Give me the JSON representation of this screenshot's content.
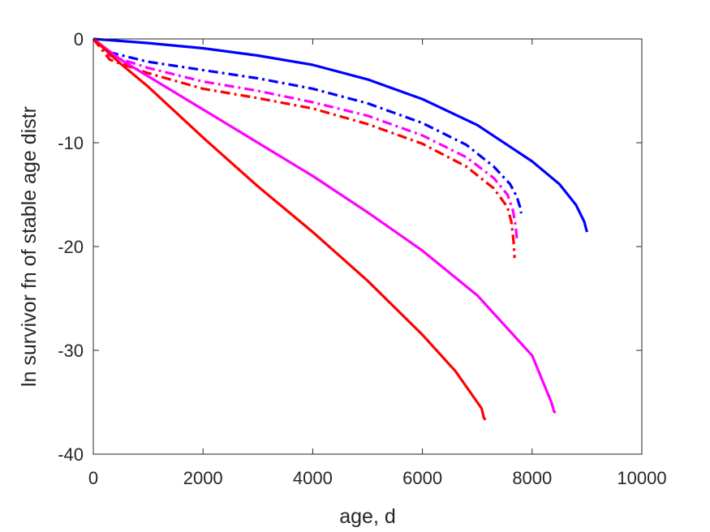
{
  "chart_data": {
    "type": "line",
    "title": "",
    "xlabel": "age, d",
    "ylabel": "ln survivor fn of stable age distr",
    "xlim": [
      0,
      10000
    ],
    "ylim": [
      -40,
      0
    ],
    "xticks": [
      0,
      2000,
      4000,
      6000,
      8000,
      10000
    ],
    "yticks": [
      0,
      -10,
      -20,
      -30,
      -40
    ],
    "grid": false,
    "legend": "none",
    "series": [
      {
        "color": "#0000ff",
        "style": "solid",
        "x": [
          0,
          1000,
          2000,
          3000,
          4000,
          5000,
          6000,
          7000,
          8000,
          8500,
          8800,
          8950,
          9000
        ],
        "y": [
          0,
          -0.4,
          -0.9,
          -1.6,
          -2.5,
          -3.9,
          -5.8,
          -8.3,
          -11.8,
          -14.0,
          -16.0,
          -17.6,
          -18.6
        ]
      },
      {
        "color": "#0000ff",
        "style": "dashdot",
        "x": [
          0,
          300,
          1000,
          2000,
          3000,
          4000,
          5000,
          6000,
          6800,
          7300,
          7600,
          7720,
          7780,
          7800
        ],
        "y": [
          0,
          -1.3,
          -2.2,
          -3.0,
          -3.8,
          -4.8,
          -6.2,
          -8.1,
          -10.2,
          -12.3,
          -14.0,
          -15.2,
          -16.2,
          -16.8
        ]
      },
      {
        "color": "#ff00ff",
        "style": "dashdot",
        "x": [
          0,
          300,
          1000,
          2000,
          3000,
          4000,
          5000,
          6000,
          6800,
          7300,
          7550,
          7650,
          7700,
          7720
        ],
        "y": [
          0,
          -1.6,
          -2.8,
          -4.1,
          -5.0,
          -6.1,
          -7.4,
          -9.3,
          -11.4,
          -13.4,
          -15.0,
          -16.5,
          -18.0,
          -19.2
        ]
      },
      {
        "color": "#ff0000",
        "style": "dashdot",
        "x": [
          0,
          300,
          1000,
          2000,
          3000,
          4000,
          5000,
          6000,
          6800,
          7300,
          7550,
          7620,
          7660,
          7680
        ],
        "y": [
          0,
          -2.0,
          -3.3,
          -4.8,
          -5.7,
          -6.7,
          -8.2,
          -10.1,
          -12.3,
          -14.4,
          -16.2,
          -17.6,
          -19.4,
          -21.1
        ]
      },
      {
        "color": "#ff00ff",
        "style": "solid",
        "x": [
          0,
          500,
          1000,
          2000,
          3000,
          4000,
          5000,
          6000,
          7000,
          8000,
          8350,
          8400,
          8430
        ],
        "y": [
          0,
          -2.0,
          -3.6,
          -6.8,
          -10.0,
          -13.2,
          -16.7,
          -20.4,
          -24.7,
          -30.5,
          -35.0,
          -35.9,
          -36.0
        ]
      },
      {
        "color": "#ff0000",
        "style": "solid",
        "x": [
          0,
          500,
          1000,
          2000,
          3000,
          4000,
          5000,
          6000,
          6600,
          7000,
          7080,
          7120,
          7150
        ],
        "y": [
          0,
          -2.4,
          -4.6,
          -9.5,
          -14.2,
          -18.6,
          -23.3,
          -28.5,
          -32.0,
          -35.0,
          -35.6,
          -36.5,
          -36.7
        ]
      }
    ]
  }
}
